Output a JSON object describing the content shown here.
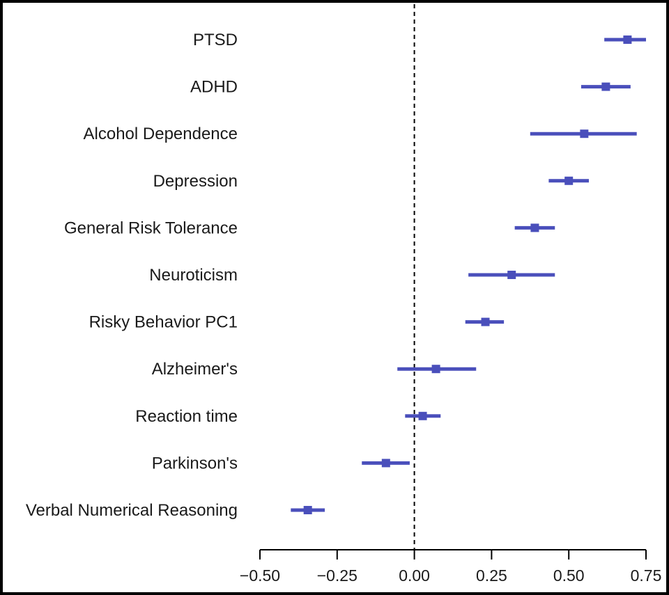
{
  "chart_data": {
    "type": "forest",
    "title": "",
    "xlabel": "",
    "ylabel": "",
    "xlim": [
      -0.5,
      0.75
    ],
    "x_ticks": [
      -0.5,
      -0.25,
      0.0,
      0.25,
      0.5,
      0.75
    ],
    "x_tick_labels": [
      "−0.50",
      "−0.25",
      "0.00",
      "0.25",
      "0.50",
      "0.75"
    ],
    "reference_line": 0,
    "reference_line_style": "dashed",
    "grid": false,
    "color": "#4a4fbb",
    "categories": [
      "PTSD",
      "ADHD",
      "Alcohol Dependence",
      "Depression",
      "General Risk Tolerance",
      "Neuroticism",
      "Risky Behavior PC1",
      "Alzheimer's",
      "Reaction time",
      "Parkinson's",
      "Verbal Numerical Reasoning"
    ],
    "estimates": [
      0.69,
      0.62,
      0.55,
      0.5,
      0.39,
      0.315,
      0.23,
      0.07,
      0.027,
      -0.092,
      -0.345
    ],
    "lower": [
      0.615,
      0.54,
      0.375,
      0.435,
      0.325,
      0.175,
      0.165,
      -0.055,
      -0.03,
      -0.17,
      -0.4
    ],
    "upper": [
      0.75,
      0.7,
      0.72,
      0.565,
      0.455,
      0.455,
      0.29,
      0.2,
      0.085,
      -0.015,
      -0.29
    ]
  }
}
